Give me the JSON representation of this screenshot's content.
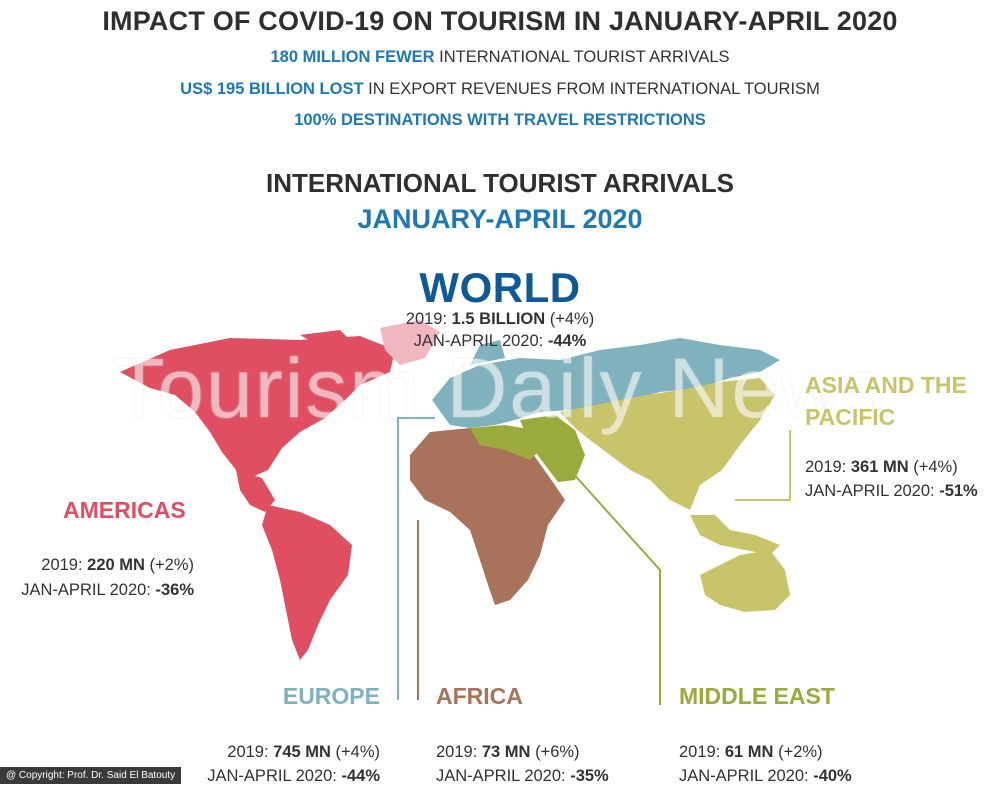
{
  "header": {
    "title": "IMPACT OF COVID-19 ON TOURISM IN JANUARY-APRIL 2020",
    "stats": [
      {
        "bold": "180 MILLION FEWER",
        "rest": " INTERNATIONAL TOURIST ARRIVALS"
      },
      {
        "bold": "US$ 195 BILLION LOST",
        "rest": " IN EXPORT REVENUES FROM INTERNATIONAL TOURISM"
      },
      {
        "bold": "100% DESTINATIONS WITH TRAVEL RESTRICTIONS",
        "rest": ""
      }
    ]
  },
  "section": {
    "title": "INTERNATIONAL TOURIST ARRIVALS",
    "period": "JANUARY-APRIL 2020"
  },
  "world": {
    "name": "WORLD",
    "line1_prefix": "2019: ",
    "line1_value": "1.5 BILLION",
    "line1_suffix": " (+4%)",
    "line2_prefix": "JAN-APRIL 2020: ",
    "line2_value": "-44%"
  },
  "regions": {
    "americas": {
      "name": "AMERICAS",
      "prefix1": "2019: ",
      "value2019": "220 MN",
      "growth2019": " (+2%)",
      "prefix2": "JAN-APRIL 2020: ",
      "change2020": "-36%",
      "color": "#e04e62"
    },
    "europe": {
      "name": "EUROPE",
      "prefix1": "2019: ",
      "value2019": "745 MN",
      "growth2019": " (+4%)",
      "prefix2": "JAN-APRIL 2020: ",
      "change2020": "-44%",
      "color": "#7fb2bd"
    },
    "africa": {
      "name": "AFRICA",
      "prefix1": "2019: ",
      "value2019": "73 MN",
      "growth2019": " (+6%)",
      "prefix2": "JAN-APRIL 2020: ",
      "change2020": "-35%",
      "color": "#a8735a"
    },
    "middle_east": {
      "name": "MIDDLE EAST",
      "prefix1": "2019: ",
      "value2019": "61 MN",
      "growth2019": " (+2%)",
      "prefix2": "JAN-APRIL 2020: ",
      "change2020": "-40%",
      "color": "#9aab3c"
    },
    "asia_pacific": {
      "name1": "ASIA AND THE",
      "name2": "PACIFIC",
      "prefix1": "2019: ",
      "value2019": "361 MN",
      "growth2019": " (+4%)",
      "prefix2": "JAN-APRIL 2020: ",
      "change2020": "-51%",
      "color": "#c8c46a"
    }
  },
  "watermark": "Tourism Daily News",
  "copyright": "@ Copyright: Prof. Dr. Said El Batouty"
}
